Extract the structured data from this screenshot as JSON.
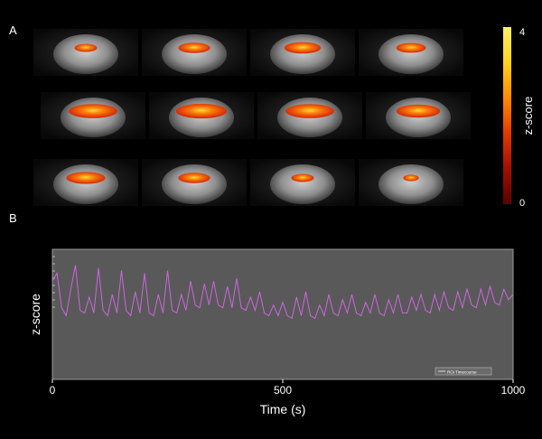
{
  "panel_a": {
    "label": "A",
    "slice_rows": [
      {
        "slices": [
          {
            "activation": 0.25
          },
          {
            "activation": 0.45
          },
          {
            "activation": 0.55
          },
          {
            "activation": 0.4
          }
        ]
      },
      {
        "slices": [
          {
            "activation": 0.8
          },
          {
            "activation": 0.85
          },
          {
            "activation": 0.8
          },
          {
            "activation": 0.7
          }
        ]
      },
      {
        "slices": [
          {
            "activation": 0.6
          },
          {
            "activation": 0.45
          },
          {
            "activation": 0.25
          },
          {
            "activation": 0.1
          }
        ]
      }
    ],
    "colorbar": {
      "label": "z-score",
      "min_label": "0",
      "max_label": "4",
      "colors": [
        "#5a0000",
        "#a01000",
        "#e03a00",
        "#ff8a00",
        "#ffd21a",
        "#fff06a"
      ]
    }
  },
  "panel_b": {
    "label": "B",
    "plot_bg": "#595959",
    "trace_color": "#cc66dd",
    "legend_text": "ROI Timecourse",
    "chart_data": {
      "type": "line",
      "xlabel": "Time (s)",
      "ylabel": "z-score",
      "xlim": [
        0,
        1000
      ],
      "ylim": [
        -2.2,
        2.7
      ],
      "x_ticks": [
        "0",
        "500",
        "1000"
      ],
      "series": [
        {
          "name": "ROI Timecourse",
          "x": [
            0,
            10,
            20,
            30,
            40,
            50,
            60,
            70,
            80,
            90,
            100,
            110,
            120,
            130,
            140,
            150,
            160,
            170,
            180,
            190,
            200,
            210,
            220,
            230,
            240,
            250,
            260,
            270,
            280,
            290,
            300,
            310,
            320,
            330,
            340,
            350,
            360,
            370,
            380,
            390,
            400,
            410,
            420,
            430,
            440,
            450,
            460,
            470,
            480,
            490,
            500,
            510,
            520,
            530,
            540,
            550,
            560,
            570,
            580,
            590,
            600,
            610,
            620,
            630,
            640,
            650,
            660,
            670,
            680,
            690,
            700,
            710,
            720,
            730,
            740,
            750,
            760,
            770,
            780,
            790,
            800,
            810,
            820,
            830,
            840,
            850,
            860,
            870,
            880,
            890,
            900,
            910,
            920,
            930,
            940,
            950,
            960,
            970,
            980,
            990,
            1000
          ],
          "y": [
            1.5,
            1.8,
            0.5,
            0.2,
            1.2,
            2.1,
            0.4,
            0.3,
            0.9,
            0.3,
            2.0,
            0.4,
            0.2,
            1.0,
            0.3,
            1.9,
            0.4,
            0.2,
            1.1,
            0.3,
            1.8,
            0.3,
            0.2,
            1.0,
            0.3,
            1.9,
            0.4,
            0.3,
            1.0,
            0.4,
            1.5,
            0.6,
            0.5,
            1.4,
            0.6,
            1.5,
            0.6,
            0.5,
            1.3,
            0.5,
            1.6,
            0.5,
            0.4,
            0.9,
            0.4,
            1.1,
            0.3,
            0.2,
            0.6,
            0.2,
            0.7,
            0.2,
            0.1,
            0.9,
            0.2,
            1.1,
            0.2,
            0.1,
            0.6,
            0.2,
            1.0,
            0.3,
            0.2,
            0.8,
            0.3,
            1.0,
            0.3,
            0.2,
            0.7,
            0.3,
            1.0,
            0.3,
            0.2,
            0.8,
            0.3,
            1.0,
            0.3,
            0.3,
            0.9,
            0.4,
            1.0,
            0.4,
            0.3,
            1.0,
            0.4,
            1.1,
            0.5,
            0.4,
            1.1,
            0.5,
            1.2,
            0.6,
            0.5,
            1.2,
            0.6,
            1.3,
            0.7,
            0.6,
            1.2,
            0.8,
            1.0
          ]
        }
      ]
    }
  }
}
